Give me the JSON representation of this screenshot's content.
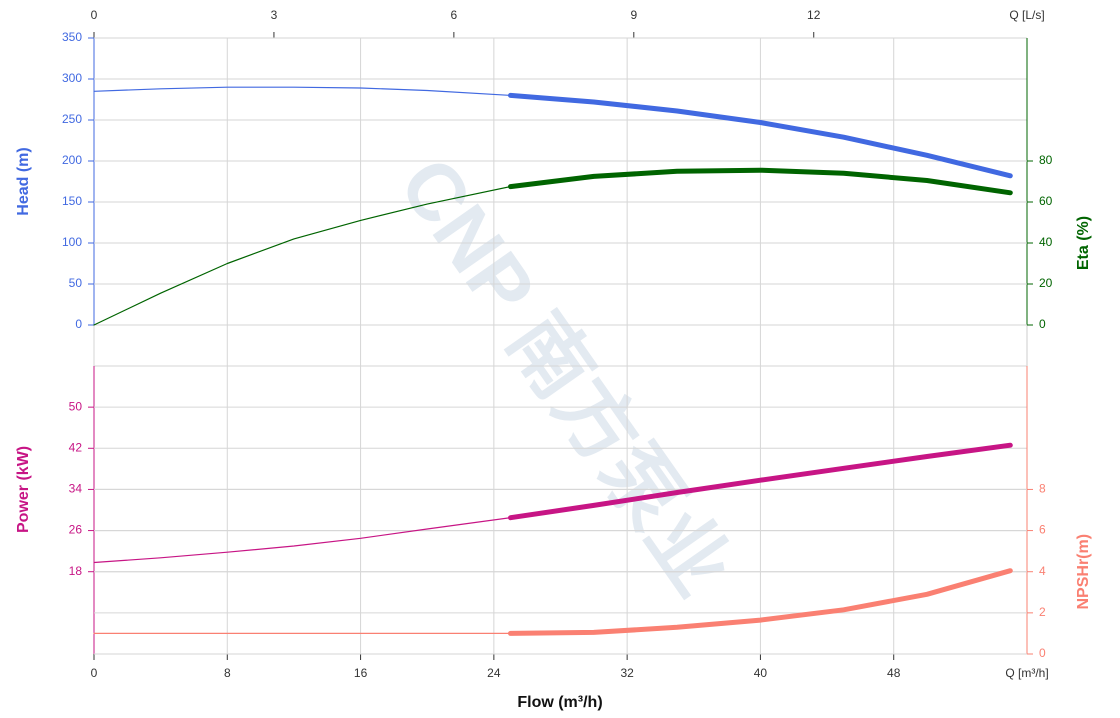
{
  "chart_data": {
    "type": "line",
    "x_label": "Flow (m³/h)",
    "xlim": [
      0,
      56
    ],
    "xticks": [
      0,
      8,
      16,
      24,
      32,
      40,
      48
    ],
    "x_unit": "Q [m³/h]",
    "top_xlim": [
      0,
      15.5556
    ],
    "top_xticks": [
      0,
      3,
      6,
      9,
      12
    ],
    "top_x_unit": "Q [L/s]",
    "operating_range": [
      25,
      55
    ],
    "grid": true,
    "watermark": "CNP 南方泵业",
    "axes": {
      "head": {
        "label": "Head (m)",
        "color": "#4169e1",
        "side": "left",
        "lim": [
          0,
          350
        ],
        "ticks": [
          0,
          50,
          100,
          150,
          200,
          250,
          300,
          350
        ]
      },
      "eta": {
        "label": "Eta (%)",
        "color": "#006400",
        "side": "right",
        "lim": [
          0,
          140
        ],
        "ticks": [
          0,
          20,
          40,
          60,
          80
        ]
      },
      "power": {
        "label": "Power (kW)",
        "color": "#c71585",
        "side": "left",
        "lim": [
          2,
          58
        ],
        "ticks": [
          18,
          26,
          34,
          42,
          50
        ]
      },
      "npsh": {
        "label": "NPSHr(m)",
        "color": "#fa8072",
        "side": "right",
        "lim": [
          0,
          14
        ],
        "ticks": [
          0,
          2,
          4,
          6,
          8
        ]
      }
    },
    "x": [
      0,
      4,
      8,
      12,
      16,
      20,
      25,
      30,
      35,
      40,
      45,
      50,
      55
    ],
    "series": [
      {
        "name": "Head",
        "axis": "head",
        "color": "#4169e1",
        "values": [
          285,
          288,
          290,
          290,
          289,
          286,
          280,
          272,
          261,
          247,
          229,
          207,
          182
        ]
      },
      {
        "name": "Eta",
        "axis": "eta",
        "color": "#006400",
        "values": [
          0,
          15.5,
          30,
          42,
          51,
          59,
          67.5,
          72.5,
          75,
          75.5,
          74,
          70.5,
          64.5
        ]
      },
      {
        "name": "Power",
        "axis": "power",
        "color": "#c71585",
        "values": [
          19.8,
          20.7,
          21.8,
          23,
          24.5,
          26.3,
          28.5,
          30.9,
          33.4,
          35.8,
          38.1,
          40.4,
          42.6
        ]
      },
      {
        "name": "NPSHr",
        "axis": "npsh",
        "color": "#fa8072",
        "values": [
          1,
          1,
          1,
          1,
          1,
          1,
          1,
          1.05,
          1.3,
          1.65,
          2.15,
          2.9,
          4.05
        ]
      }
    ]
  }
}
